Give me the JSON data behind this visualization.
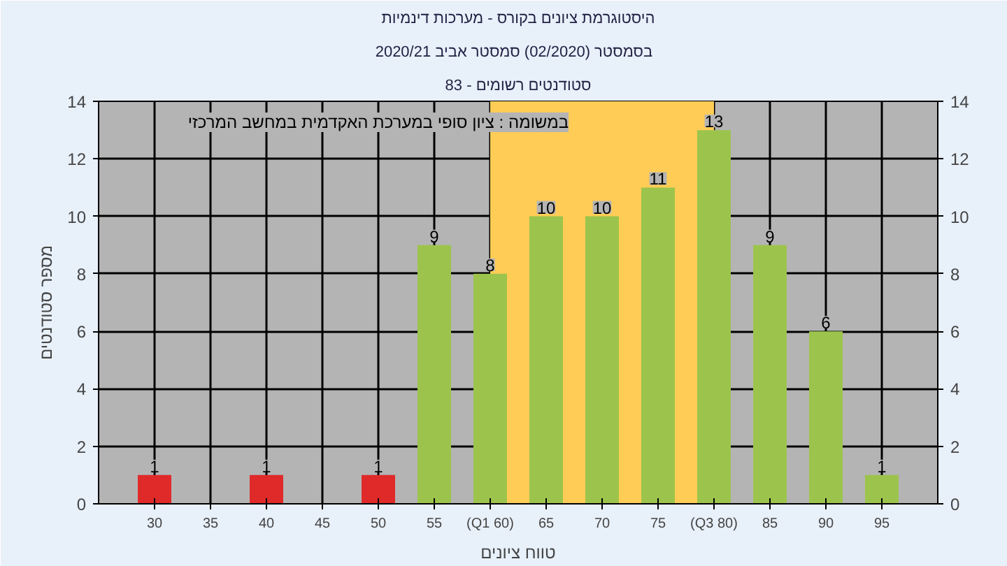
{
  "chart_data": {
    "type": "bar",
    "title": "היסטוגרמת ציונים בקורס - מערכות דינמיות",
    "subtitle": "בסמסטר  (02/2020)  סמסטר אביב 2020/21",
    "xlabel": "טווח ציונים",
    "ylabel": "מספר סטודנטים",
    "x": [
      30,
      35,
      40,
      45,
      50,
      55,
      60,
      65,
      70,
      75,
      80,
      85,
      90,
      95
    ],
    "values": [
      1,
      0,
      1,
      0,
      1,
      9,
      8,
      10,
      10,
      11,
      13,
      9,
      6,
      1
    ],
    "value_labels": [
      "1",
      null,
      "1",
      null,
      "1",
      "9",
      "8",
      "10",
      "10",
      "11",
      "13",
      "9",
      "6",
      "1"
    ],
    "colors": [
      "#e02a2a",
      "#e02a2a",
      "#e02a2a",
      "#e02a2a",
      "#e02a2a",
      "#9cc44c",
      "#9cc44c",
      "#9cc44c",
      "#9cc44c",
      "#9cc44c",
      "#9cc44c",
      "#9cc44c",
      "#9cc44c",
      "#9cc44c"
    ],
    "xlim": [
      25,
      100
    ],
    "xticks": [
      30,
      35,
      40,
      45,
      50,
      55,
      {
        "value": 60,
        "label": "(Q1 60)"
      },
      65,
      70,
      75,
      {
        "value": 80,
        "label": "(Q3 80)"
      },
      85,
      90,
      95
    ],
    "ylim": [
      0,
      14
    ],
    "yticks": [
      0,
      2,
      4,
      6,
      8,
      10,
      12,
      14
    ],
    "y2lim": [
      0,
      14
    ],
    "y2ticks": [
      0,
      2,
      4,
      6,
      8,
      10,
      12,
      14
    ],
    "bands": [
      {
        "axis": "x",
        "from": 60,
        "to": 80,
        "color": "#ffcc55"
      }
    ],
    "annotations": [
      "סטודנטים רשומים - 83",
      "במשומה : ציון סופי במערכת האקדמית במחשב המרכזי"
    ],
    "grid": true
  }
}
